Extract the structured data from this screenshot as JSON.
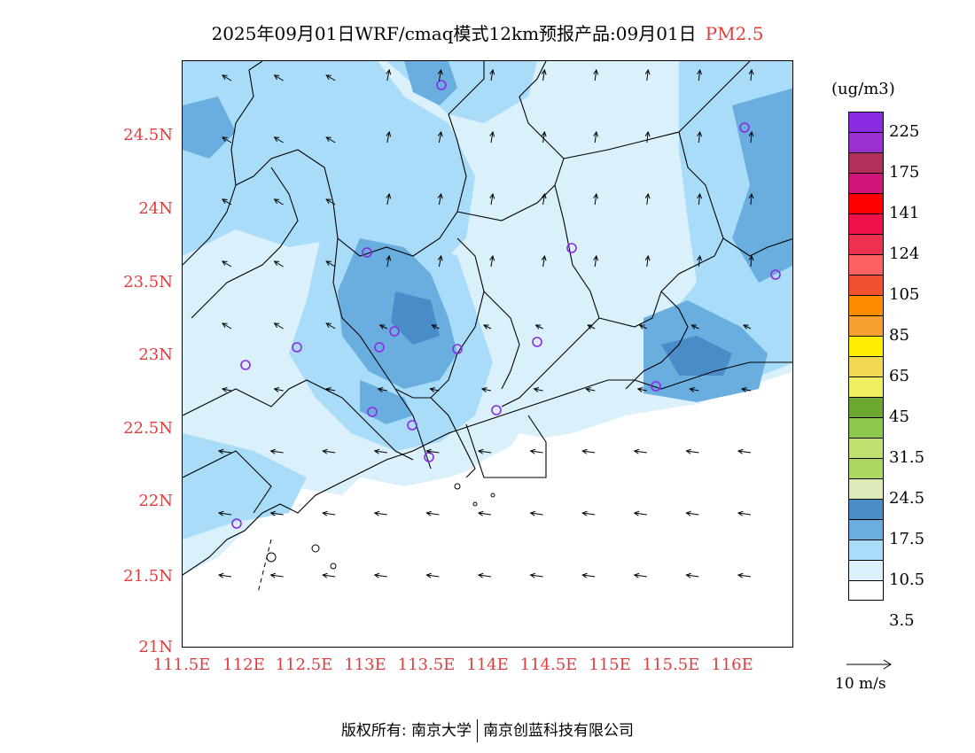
{
  "title": {
    "main": "2025年09月01日WRF/cmaq模式12km预报产品:09月01日",
    "pollutant": "PM2.5",
    "pollutant_color": "#e03c3c"
  },
  "map": {
    "lat_labels": [
      "24.5N",
      "24N",
      "23.5N",
      "23N",
      "22.5N",
      "22N",
      "21.5N",
      "21N"
    ],
    "lon_labels": [
      "111.5E",
      "112E",
      "112.5E",
      "113E",
      "113.5E",
      "114E",
      "114.5E",
      "115E",
      "115.5E",
      "116E"
    ],
    "tick_color": "#e03c3c"
  },
  "colorbar": {
    "units": "(ug/m3)",
    "colors": [
      "#8a2be2",
      "#9b30d0",
      "#b0305a",
      "#d0157a",
      "#ff0000",
      "#f0104a",
      "#f03050",
      "#ff6060",
      "#f05030",
      "#ff8c00",
      "#f5a030",
      "#ffee00",
      "#f0d850",
      "#eef060",
      "#6aa832",
      "#8cc84a",
      "#c0e070",
      "#a8d860",
      "#dceab8",
      "#4a8cc8",
      "#6aaee0",
      "#a8dcf8",
      "#daf0fa",
      "#ffffff"
    ],
    "labels": [
      "225",
      "175",
      "141",
      "124",
      "105",
      "85",
      "65",
      "45",
      "31.5",
      "24.5",
      "17.5",
      "10.5",
      "3.5"
    ]
  },
  "wind_reference": {
    "label": "10 m/s"
  },
  "footer": {
    "left": "版权所有: 南京大学",
    "right": "南京创蓝科技有限公司"
  }
}
